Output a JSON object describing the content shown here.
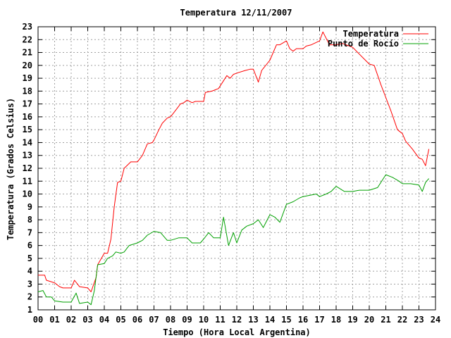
{
  "chart_data": {
    "type": "line",
    "title": "Temperatura 12/11/2007",
    "xlabel": "Tiempo (Hora Local Argentina)",
    "ylabel": "Temperatura (Grados Celsius)",
    "xlim": [
      0,
      24
    ],
    "ylim": [
      1,
      23
    ],
    "x_ticks": [
      "00",
      "01",
      "02",
      "03",
      "04",
      "05",
      "06",
      "07",
      "08",
      "09",
      "10",
      "11",
      "12",
      "13",
      "14",
      "15",
      "16",
      "17",
      "18",
      "19",
      "20",
      "21",
      "22",
      "23",
      "24"
    ],
    "y_ticks": [
      "1",
      "2",
      "3",
      "4",
      "5",
      "6",
      "7",
      "8",
      "9",
      "10",
      "11",
      "12",
      "13",
      "14",
      "15",
      "16",
      "17",
      "18",
      "19",
      "20",
      "21",
      "22",
      "23"
    ],
    "grid": true,
    "legend_position": "top-right",
    "series": [
      {
        "name": "Temperatura",
        "color": "#ff0000",
        "x": [
          0.0,
          0.4,
          0.5,
          1.0,
          1.3,
          1.5,
          2.0,
          2.2,
          2.5,
          3.0,
          3.2,
          3.5,
          3.6,
          4.0,
          4.2,
          4.4,
          4.6,
          4.8,
          5.0,
          5.2,
          5.6,
          6.0,
          6.3,
          6.6,
          6.9,
          7.0,
          7.3,
          7.5,
          7.8,
          8.0,
          8.3,
          8.6,
          8.8,
          9.0,
          9.3,
          9.5,
          10.0,
          10.1,
          10.5,
          10.9,
          11.2,
          11.4,
          11.6,
          11.8,
          12.0,
          12.5,
          12.8,
          13.0,
          13.3,
          13.5,
          14.0,
          14.2,
          14.4,
          14.6,
          15.0,
          15.2,
          15.4,
          15.6,
          16.0,
          16.2,
          16.5,
          17.0,
          17.2,
          17.6,
          18.0,
          18.4,
          18.8,
          19.0,
          19.3,
          20.0,
          20.3,
          20.7,
          21.0,
          21.3,
          21.7,
          22.0,
          22.2,
          22.6,
          23.0,
          23.2,
          23.4,
          23.6
        ],
        "y": [
          3.7,
          3.7,
          3.3,
          3.1,
          2.8,
          2.7,
          2.7,
          3.3,
          2.8,
          2.7,
          2.4,
          3.5,
          4.5,
          5.4,
          5.4,
          6.5,
          9.0,
          10.9,
          11.0,
          12.0,
          12.5,
          12.5,
          13.0,
          13.9,
          14.0,
          14.2,
          15.0,
          15.5,
          15.9,
          16.0,
          16.5,
          17.0,
          17.1,
          17.3,
          17.1,
          17.2,
          17.2,
          17.9,
          18.0,
          18.2,
          18.8,
          19.2,
          19.0,
          19.3,
          19.4,
          19.6,
          19.7,
          19.7,
          18.7,
          19.6,
          20.4,
          21.0,
          21.6,
          21.6,
          21.9,
          21.3,
          21.1,
          21.3,
          21.3,
          21.5,
          21.6,
          21.9,
          22.6,
          21.6,
          21.6,
          21.7,
          21.5,
          21.4,
          21.0,
          20.1,
          20.0,
          18.5,
          17.5,
          16.5,
          15.0,
          14.7,
          14.1,
          13.5,
          12.8,
          12.7,
          12.2,
          13.5
        ]
      },
      {
        "name": "Punto de Rocío",
        "color": "#00a000",
        "x": [
          0.0,
          0.3,
          0.5,
          0.8,
          1.0,
          1.5,
          2.0,
          2.3,
          2.5,
          3.0,
          3.2,
          3.4,
          3.6,
          4.0,
          4.2,
          4.5,
          4.7,
          5.0,
          5.2,
          5.5,
          6.0,
          6.3,
          6.6,
          7.0,
          7.4,
          7.8,
          8.0,
          8.5,
          9.0,
          9.3,
          9.8,
          10.0,
          10.3,
          10.6,
          11.0,
          11.2,
          11.5,
          11.8,
          12.0,
          12.3,
          12.6,
          13.0,
          13.3,
          13.6,
          14.0,
          14.3,
          14.6,
          15.0,
          15.4,
          15.8,
          16.0,
          16.4,
          16.8,
          17.0,
          17.4,
          17.7,
          18.0,
          18.5,
          19.0,
          19.4,
          20.0,
          20.5,
          21.0,
          21.4,
          21.8,
          22.0,
          22.5,
          23.0,
          23.2,
          23.4,
          23.6
        ],
        "y": [
          2.4,
          2.5,
          2.0,
          2.0,
          1.7,
          1.6,
          1.6,
          2.3,
          1.5,
          1.6,
          1.4,
          2.5,
          4.5,
          4.6,
          5.0,
          5.2,
          5.5,
          5.4,
          5.5,
          6.0,
          6.2,
          6.4,
          6.8,
          7.1,
          7.0,
          6.4,
          6.4,
          6.6,
          6.6,
          6.2,
          6.2,
          6.5,
          7.0,
          6.6,
          6.6,
          8.2,
          6.0,
          7.0,
          6.2,
          7.2,
          7.5,
          7.7,
          8.0,
          7.4,
          8.4,
          8.2,
          7.8,
          9.2,
          9.4,
          9.7,
          9.8,
          9.9,
          10.0,
          9.8,
          10.0,
          10.2,
          10.6,
          10.2,
          10.2,
          10.3,
          10.3,
          10.5,
          11.5,
          11.3,
          11.0,
          10.8,
          10.8,
          10.7,
          10.2,
          10.9,
          11.2
        ]
      }
    ]
  }
}
